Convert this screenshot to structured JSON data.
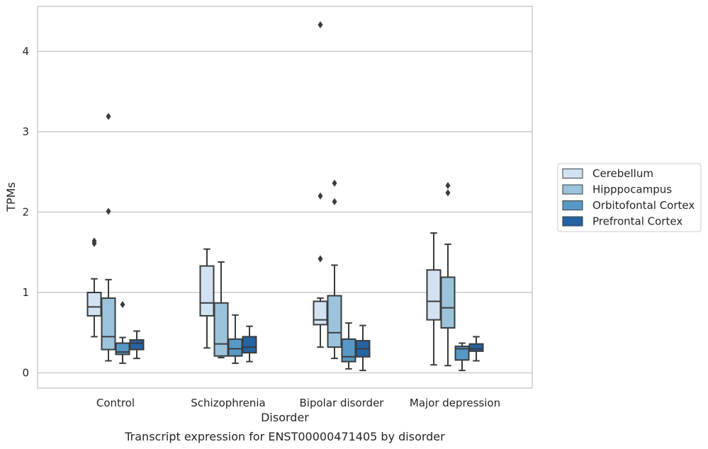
{
  "chart_data": {
    "type": "box",
    "caption": "Transcript expression for ENST00000471405 by disorder",
    "xlabel": "Disorder",
    "ylabel": "TPMs",
    "ylim": [
      -0.18,
      4.55
    ],
    "yticks": [
      "0",
      "1",
      "2",
      "3",
      "4"
    ],
    "grid": true,
    "legend_position": "right",
    "categories": [
      "Control",
      "Schizophrenia",
      "Bipolar disorder",
      "Major depression"
    ],
    "series": [
      {
        "name": "Cerebellum",
        "color": "#d1e2f2",
        "boxes": [
          {
            "whisker_low": 0.45,
            "q1": 0.71,
            "median": 0.82,
            "q3": 1.0,
            "whisker_high": 1.17,
            "outliers": [
              1.61,
              1.64
            ]
          },
          {
            "whisker_low": 0.31,
            "q1": 0.71,
            "median": 0.87,
            "q3": 1.33,
            "whisker_high": 1.54,
            "outliers": []
          },
          {
            "whisker_low": 0.32,
            "q1": 0.6,
            "median": 0.66,
            "q3": 0.89,
            "whisker_high": 0.93,
            "outliers": [
              1.42,
              2.2,
              4.33
            ]
          },
          {
            "whisker_low": 0.1,
            "q1": 0.66,
            "median": 0.89,
            "q3": 1.28,
            "whisker_high": 1.74,
            "outliers": []
          }
        ]
      },
      {
        "name": "Hipppocampus",
        "color": "#9bc3db",
        "boxes": [
          {
            "whisker_low": 0.15,
            "q1": 0.29,
            "median": 0.45,
            "q3": 0.93,
            "whisker_high": 1.16,
            "outliers": [
              2.01,
              3.19
            ]
          },
          {
            "whisker_low": 0.19,
            "q1": 0.21,
            "median": 0.36,
            "q3": 0.87,
            "whisker_high": 1.38,
            "outliers": []
          },
          {
            "whisker_low": 0.18,
            "q1": 0.32,
            "median": 0.5,
            "q3": 0.96,
            "whisker_high": 1.34,
            "outliers": [
              2.13,
              2.36
            ]
          },
          {
            "whisker_low": 0.09,
            "q1": 0.56,
            "median": 0.81,
            "q3": 1.19,
            "whisker_high": 1.6,
            "outliers": [
              2.24,
              2.33
            ]
          }
        ]
      },
      {
        "name": "Orbitofontal Cortex",
        "color": "#5699c6",
        "boxes": [
          {
            "whisker_low": 0.12,
            "q1": 0.23,
            "median": 0.26,
            "q3": 0.37,
            "whisker_high": 0.44,
            "outliers": [
              0.85
            ]
          },
          {
            "whisker_low": 0.12,
            "q1": 0.21,
            "median": 0.3,
            "q3": 0.42,
            "whisker_high": 0.72,
            "outliers": []
          },
          {
            "whisker_low": 0.05,
            "q1": 0.14,
            "median": 0.2,
            "q3": 0.42,
            "whisker_high": 0.62,
            "outliers": []
          },
          {
            "whisker_low": 0.03,
            "q1": 0.16,
            "median": 0.3,
            "q3": 0.33,
            "whisker_high": 0.37,
            "outliers": []
          }
        ]
      },
      {
        "name": "Prefrontal Cortex",
        "color": "#2563a3",
        "boxes": [
          {
            "whisker_low": 0.18,
            "q1": 0.29,
            "median": 0.37,
            "q3": 0.41,
            "whisker_high": 0.52,
            "outliers": []
          },
          {
            "whisker_low": 0.14,
            "q1": 0.25,
            "median": 0.32,
            "q3": 0.45,
            "whisker_high": 0.58,
            "outliers": []
          },
          {
            "whisker_low": 0.03,
            "q1": 0.2,
            "median": 0.3,
            "q3": 0.4,
            "whisker_high": 0.59,
            "outliers": []
          },
          {
            "whisker_low": 0.15,
            "q1": 0.27,
            "median": 0.3,
            "q3": 0.36,
            "whisker_high": 0.45,
            "outliers": []
          }
        ]
      }
    ]
  },
  "colors": {
    "grid": "#cccccc",
    "frame": "#cccccc",
    "box_edge": "#3b3b3b"
  }
}
